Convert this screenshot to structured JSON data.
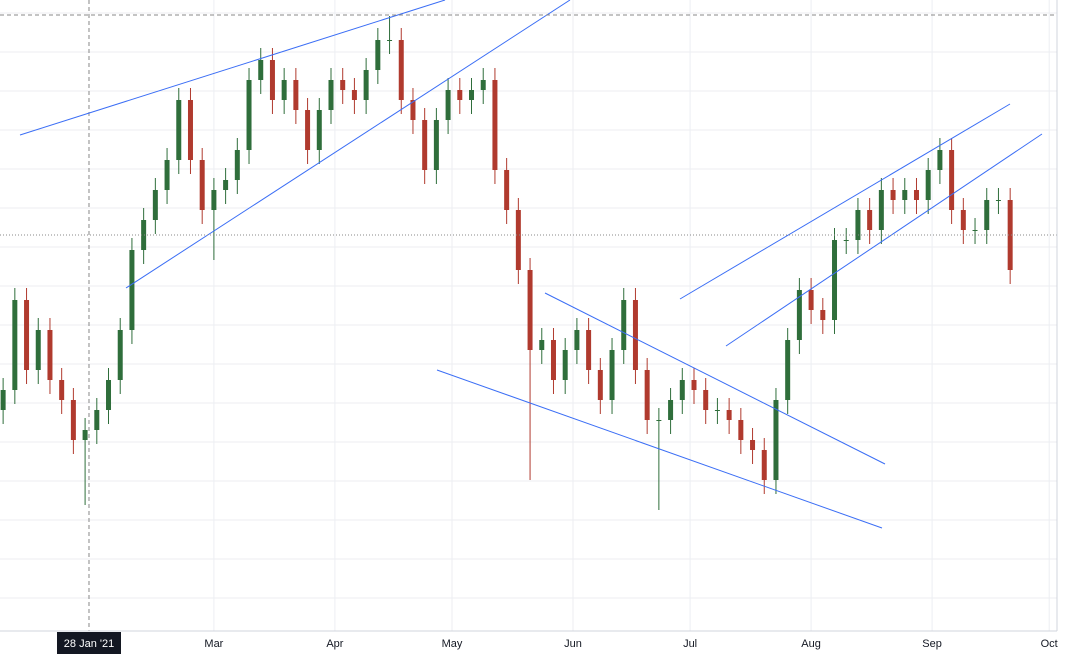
{
  "chart_data": {
    "type": "candlestick",
    "x": [
      5,
      8,
      11,
      14,
      17,
      20,
      23,
      26,
      29,
      32,
      35,
      38,
      41,
      44,
      47,
      50,
      53,
      56,
      59,
      62,
      65,
      68,
      71,
      74,
      77,
      80,
      83,
      86,
      89,
      92,
      95,
      98,
      101,
      104,
      107,
      110,
      113,
      116,
      119,
      122,
      125,
      128,
      131,
      134,
      137,
      140,
      143,
      146,
      149,
      152,
      155,
      158,
      161,
      164,
      167,
      170,
      173,
      176,
      179,
      182,
      185,
      188,
      191,
      194,
      197,
      200,
      203,
      206,
      209,
      212,
      215,
      218,
      221,
      224,
      227,
      230,
      233,
      236,
      239,
      242,
      245,
      248,
      251,
      254,
      257,
      260,
      263
    ],
    "open": [
      221,
      241,
      331,
      261,
      301,
      251,
      231,
      191,
      201,
      221,
      251,
      301,
      381,
      411,
      441,
      471,
      531,
      471,
      421,
      441,
      451,
      481,
      551,
      571,
      531,
      551,
      521,
      481,
      521,
      551,
      541,
      531,
      561,
      591,
      591,
      531,
      511,
      461,
      511,
      541,
      531,
      541,
      551,
      461,
      421,
      361,
      281,
      291,
      251,
      281,
      301,
      261,
      231,
      281,
      331,
      261,
      211,
      211,
      231,
      251,
      241,
      221,
      221,
      211,
      191,
      181,
      151,
      231,
      291,
      341,
      321,
      311,
      391,
      391,
      421,
      401,
      441,
      431,
      441,
      431,
      461,
      481,
      421,
      401,
      401,
      431,
      431
    ],
    "high": [
      253,
      343,
      343,
      313,
      313,
      263,
      243,
      213,
      233,
      263,
      313,
      393,
      423,
      453,
      483,
      543,
      543,
      483,
      453,
      463,
      493,
      563,
      583,
      583,
      563,
      563,
      533,
      533,
      563,
      563,
      553,
      573,
      603,
      615,
      603,
      543,
      523,
      523,
      553,
      553,
      553,
      563,
      563,
      473,
      433,
      373,
      303,
      303,
      293,
      313,
      313,
      273,
      293,
      343,
      343,
      273,
      223,
      243,
      263,
      263,
      253,
      233,
      233,
      223,
      203,
      193,
      243,
      303,
      353,
      353,
      333,
      403,
      403,
      433,
      433,
      453,
      453,
      453,
      453,
      473,
      493,
      493,
      433,
      413,
      443,
      443,
      443
    ],
    "low": [
      207,
      227,
      247,
      247,
      237,
      217,
      177,
      126,
      187,
      207,
      237,
      287,
      367,
      397,
      427,
      457,
      457,
      407,
      371,
      427,
      437,
      467,
      537,
      517,
      517,
      507,
      467,
      467,
      507,
      527,
      517,
      517,
      547,
      577,
      517,
      497,
      447,
      447,
      497,
      517,
      517,
      527,
      447,
      407,
      347,
      151,
      267,
      237,
      237,
      267,
      247,
      217,
      217,
      267,
      247,
      197,
      121,
      197,
      217,
      227,
      207,
      207,
      197,
      177,
      167,
      137,
      137,
      217,
      277,
      307,
      297,
      297,
      377,
      377,
      387,
      387,
      417,
      417,
      417,
      417,
      447,
      407,
      387,
      387,
      387,
      417,
      347
    ],
    "close": [
      241,
      331,
      261,
      301,
      251,
      231,
      191,
      201,
      221,
      251,
      301,
      381,
      411,
      441,
      471,
      531,
      471,
      421,
      441,
      451,
      481,
      551,
      571,
      531,
      551,
      521,
      481,
      521,
      551,
      541,
      531,
      561,
      591,
      591,
      531,
      511,
      461,
      511,
      541,
      531,
      541,
      551,
      461,
      421,
      361,
      281,
      291,
      251,
      281,
      301,
      261,
      231,
      281,
      331,
      261,
      211,
      211,
      231,
      251,
      241,
      221,
      221,
      211,
      191,
      181,
      151,
      231,
      291,
      341,
      321,
      311,
      391,
      391,
      421,
      401,
      441,
      431,
      441,
      431,
      461,
      481,
      421,
      401,
      401,
      431,
      431,
      361
    ],
    "up_color": "#2f6e3b",
    "down_color": "#b03a2e",
    "xlim": [
      4.2,
      275
    ],
    "ylim": [
      0,
      631
    ],
    "xticks": [
      {
        "value": 59,
        "label": "Mar"
      },
      {
        "value": 90,
        "label": "Apr"
      },
      {
        "value": 120,
        "label": "May"
      },
      {
        "value": 151,
        "label": "Jun"
      },
      {
        "value": 181,
        "label": "Jul"
      },
      {
        "value": 212,
        "label": "Aug"
      },
      {
        "value": 243,
        "label": "Sep"
      },
      {
        "value": 273,
        "label": "Oct"
      }
    ],
    "crosshair": {
      "value": 27,
      "label": "28 Jan '21"
    },
    "grid": true
  }
}
